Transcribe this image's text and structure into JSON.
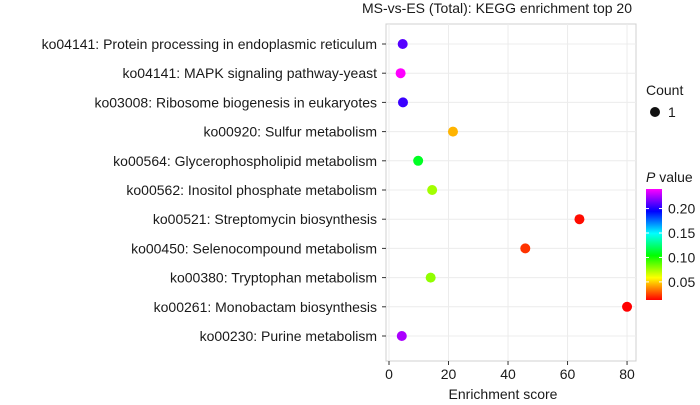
{
  "chart_data": {
    "type": "scatter",
    "title": "MS-vs-ES (Total): KEGG enrichment top 20",
    "xlabel": "Enrichment score",
    "ylabel": "",
    "xlim": [
      0,
      82
    ],
    "xticks": [
      0,
      20,
      40,
      60,
      80
    ],
    "grid": true,
    "categories": [
      "ko04141: Protein processing in endoplasmic reticulum",
      "ko04141: MAPK signaling pathway-yeast",
      "ko03008: Ribosome biogenesis in eukaryotes",
      "ko00920: Sulfur metabolism",
      "ko00564: Glycerophospholipid metabolism",
      "ko00562: Inositol phosphate metabolism",
      "ko00521: Streptomycin biosynthesis",
      "ko00450: Selenocompound metabolism",
      "ko00380: Tryptophan metabolism",
      "ko00261: Monobactam biosynthesis",
      "ko00230: Purine metabolism"
    ],
    "points": [
      {
        "term": "ko04141: Protein processing in endoplasmic reticulum",
        "enrichment": 4.6,
        "pvalue": 0.21,
        "count": 1
      },
      {
        "term": "ko04141: MAPK signaling pathway-yeast",
        "enrichment": 3.9,
        "pvalue": 0.24,
        "count": 1
      },
      {
        "term": "ko03008: Ribosome biogenesis in eukaryotes",
        "enrichment": 4.7,
        "pvalue": 0.205,
        "count": 1
      },
      {
        "term": "ko00920: Sulfur metabolism",
        "enrichment": 21.5,
        "pvalue": 0.045,
        "count": 1
      },
      {
        "term": "ko00564: Glycerophospholipid metabolism",
        "enrichment": 9.8,
        "pvalue": 0.11,
        "count": 1
      },
      {
        "term": "ko00562: Inositol phosphate metabolism",
        "enrichment": 14.5,
        "pvalue": 0.075,
        "count": 1
      },
      {
        "term": "ko00521: Streptomycin biosynthesis",
        "enrichment": 64.0,
        "pvalue": 0.015,
        "count": 1
      },
      {
        "term": "ko00450: Selenocompound metabolism",
        "enrichment": 45.8,
        "pvalue": 0.022,
        "count": 1
      },
      {
        "term": "ko00380: Tryptophan metabolism",
        "enrichment": 14.0,
        "pvalue": 0.078,
        "count": 1
      },
      {
        "term": "ko00261: Monobactam biosynthesis",
        "enrichment": 80.0,
        "pvalue": 0.013,
        "count": 1
      },
      {
        "term": "ko00230: Purine metabolism",
        "enrichment": 4.3,
        "pvalue": 0.225,
        "count": 1
      }
    ],
    "size_legend": {
      "title": "Count",
      "values": [
        1
      ]
    },
    "color_legend": {
      "title_italic": "P",
      "title_rest": " value",
      "ticks": [
        "0.20",
        "0.15",
        "0.10",
        "0.05"
      ],
      "tick_values": [
        0.2,
        0.15,
        0.1,
        0.05
      ],
      "range": [
        0.013,
        0.24
      ],
      "colors": [
        "#ff0000",
        "#ffff00",
        "#00ff00",
        "#00ffff",
        "#0000ff",
        "#ff00ff"
      ]
    }
  }
}
